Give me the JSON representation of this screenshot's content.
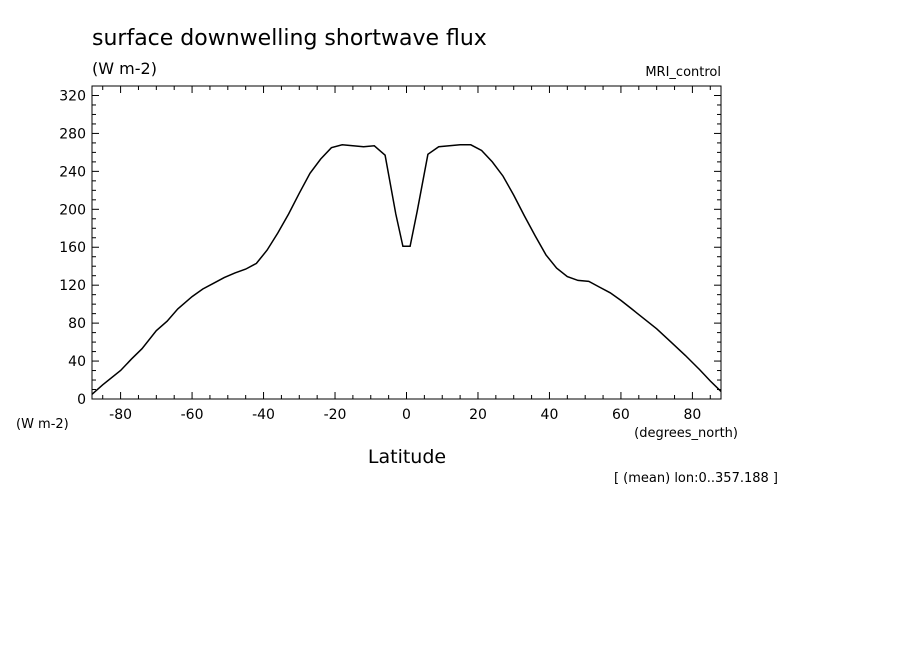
{
  "chart_data": {
    "type": "line",
    "title": "surface downwelling shortwave flux",
    "units": "(W m-2)",
    "model": "MRI_control",
    "xlabel": "Latitude",
    "x_units": "(degrees_north)",
    "y_units": "(W m-2)",
    "footnote": "[ (mean) lon:0..357.188 ]",
    "xlim": [
      -88,
      88
    ],
    "ylim": [
      0,
      330
    ],
    "x_ticks": [
      -80,
      -60,
      -40,
      -20,
      0,
      20,
      40,
      60,
      80
    ],
    "x_tick_labels": [
      "-80",
      "-60",
      "-40",
      "-20",
      "0",
      "20",
      "40",
      "60",
      "80"
    ],
    "y_ticks": [
      0,
      40,
      80,
      120,
      160,
      200,
      240,
      280,
      320
    ],
    "y_tick_labels": [
      "0",
      "40",
      "80",
      "120",
      "160",
      "200",
      "240",
      "280",
      "320"
    ],
    "grid": false,
    "series": [
      {
        "x": [
          -88,
          -85,
          -80,
          -77,
          -74,
          -70,
          -67,
          -64,
          -60,
          -57,
          -54,
          -51,
          -48,
          -45,
          -42,
          -39,
          -36,
          -33,
          -30,
          -27,
          -24,
          -21,
          -18,
          -15,
          -12,
          -9,
          -6,
          -3,
          -1,
          1,
          3,
          6,
          9,
          12,
          15,
          18,
          21,
          24,
          27,
          30,
          33,
          36,
          39,
          42,
          45,
          48,
          51,
          54,
          57,
          60,
          63,
          66,
          70,
          74,
          78,
          82,
          85,
          88
        ],
        "y": [
          5,
          15,
          30,
          42,
          53,
          72,
          82,
          95,
          108,
          116,
          122,
          128,
          133,
          137,
          143,
          157,
          175,
          195,
          217,
          238,
          253,
          265,
          268,
          267,
          266,
          267,
          257,
          195,
          161,
          161,
          198,
          258,
          266,
          267,
          268,
          268,
          262,
          250,
          235,
          215,
          193,
          172,
          152,
          138,
          129,
          125,
          124,
          118,
          112,
          104,
          95,
          86,
          74,
          60,
          46,
          31,
          19,
          8
        ]
      }
    ]
  }
}
